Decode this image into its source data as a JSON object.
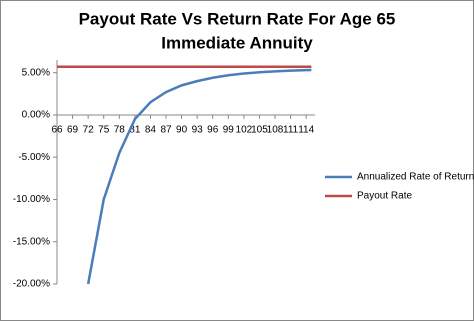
{
  "chart_data": {
    "type": "line",
    "title": [
      "Payout Rate Vs Return Rate For Age 65",
      "Immediate Annuity"
    ],
    "x": [
      66,
      69,
      72,
      75,
      78,
      81,
      84,
      87,
      90,
      93,
      96,
      99,
      102,
      105,
      108,
      111,
      114,
      115
    ],
    "series": [
      {
        "name": "Annualized Rate of Return",
        "color": "#4a7ebb",
        "values": [
          null,
          null,
          -20,
          -10,
          -4.5,
          -0.5,
          1.5,
          2.7,
          3.5,
          4.0,
          4.4,
          4.7,
          4.9,
          5.05,
          5.15,
          5.25,
          5.3,
          5.32
        ]
      },
      {
        "name": "Payout Rate",
        "color": "#be4b48",
        "values": [
          5.7,
          5.7,
          5.7,
          5.7,
          5.7,
          5.7,
          5.7,
          5.7,
          5.7,
          5.7,
          5.7,
          5.7,
          5.7,
          5.7,
          5.7,
          5.7,
          5.7,
          5.7
        ]
      }
    ],
    "xlim": [
      66,
      115.7
    ],
    "xticks": [
      66,
      69,
      72,
      75,
      78,
      81,
      84,
      87,
      90,
      93,
      96,
      99,
      102,
      105,
      108,
      111,
      114
    ],
    "ylim": [
      -20,
      6.5
    ],
    "yticks": [
      {
        "value": 5,
        "label": "5.00%"
      },
      {
        "value": 0,
        "label": "0.00%"
      },
      {
        "value": -5,
        "label": "-5.00%"
      },
      {
        "value": -10,
        "label": "-10.00%"
      },
      {
        "value": -15,
        "label": "-15.00%"
      },
      {
        "value": -20,
        "label": "-20.00%"
      }
    ],
    "legend": "right"
  }
}
